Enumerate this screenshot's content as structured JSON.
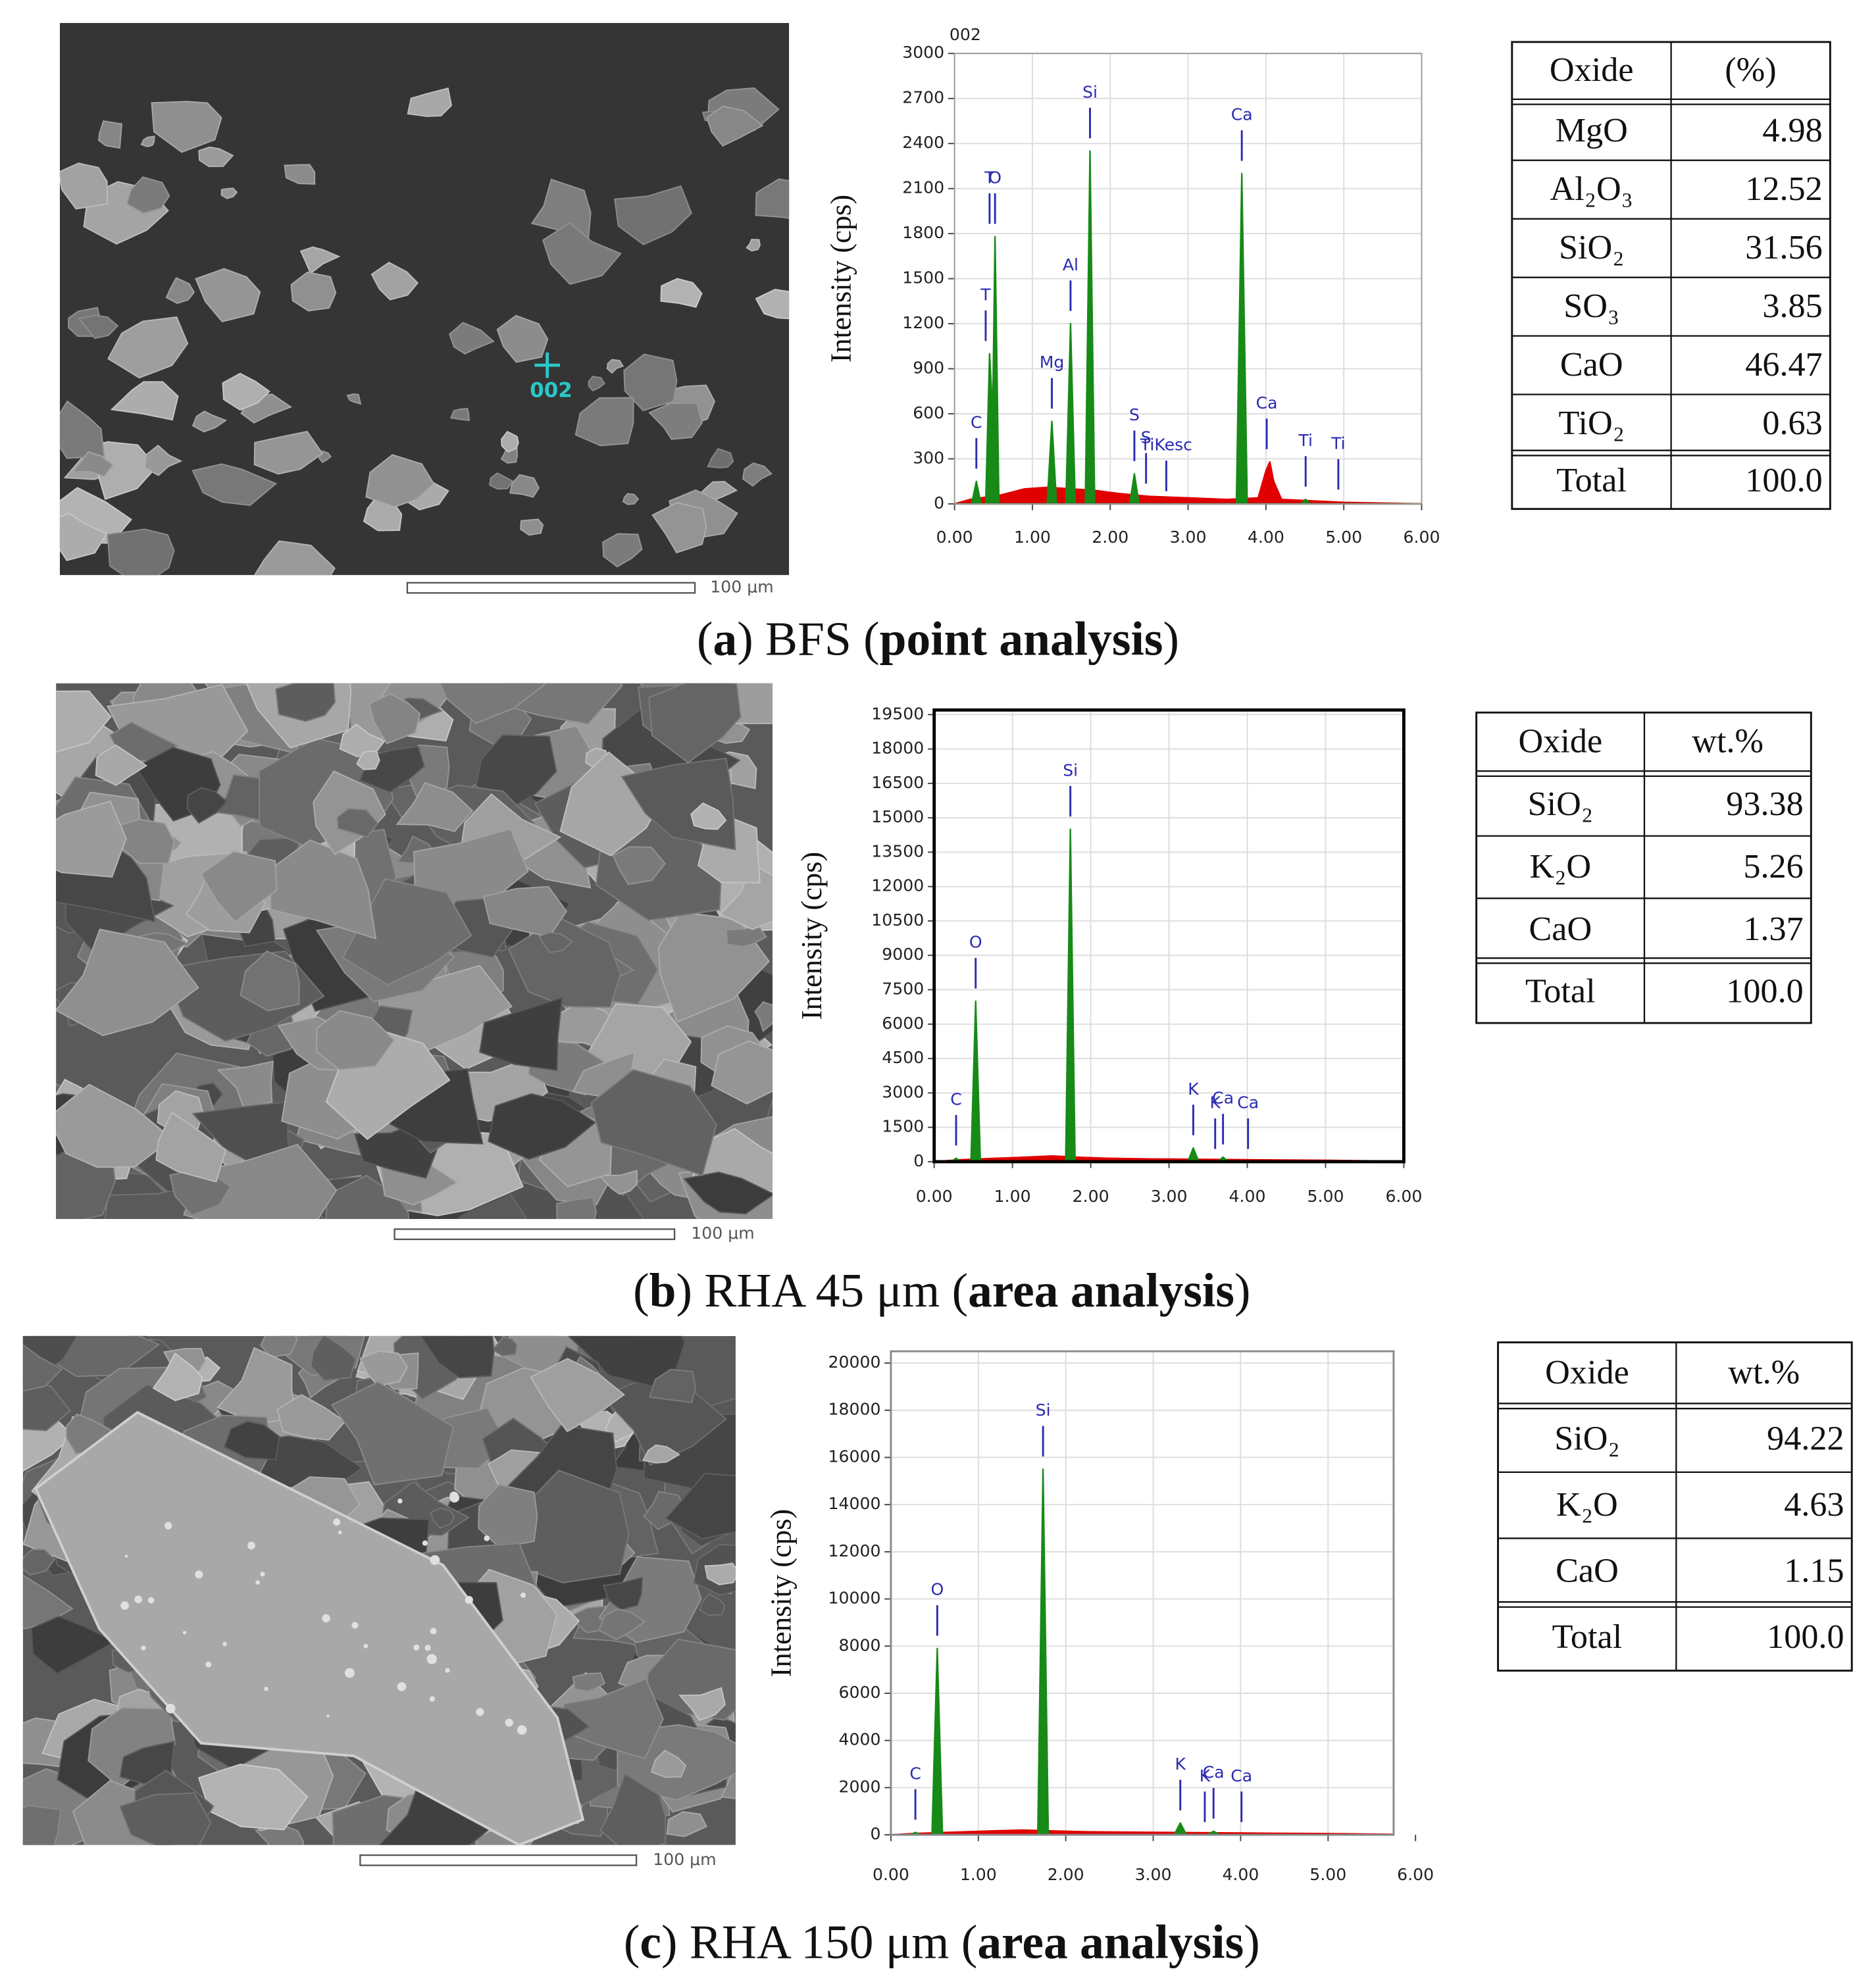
{
  "chart_data": [
    {
      "type": "spectrum",
      "title": "002",
      "y_label": "Intensity (cps)",
      "xlim": [
        0,
        6
      ],
      "xticks": [
        {
          "value": 0,
          "label": "0.00"
        },
        {
          "value": 1,
          "label": "1.00"
        },
        {
          "value": 2,
          "label": "2.00"
        },
        {
          "value": 3,
          "label": "3.00"
        },
        {
          "value": 4,
          "label": "4.00"
        },
        {
          "value": 5,
          "label": "5.00"
        },
        {
          "value": 6,
          "label": "6.00"
        }
      ],
      "ylim": [
        0,
        3000
      ],
      "yticks": [
        0,
        300,
        600,
        900,
        1200,
        1500,
        1800,
        2100,
        2400,
        2700,
        3000
      ],
      "grid": true,
      "series": [
        {
          "color": "#e00000",
          "x": [
            0,
            0.2,
            0.6,
            0.9,
            1.2,
            1.5,
            1.8,
            2.1,
            2.5,
            3.0,
            3.5,
            3.9,
            4.0,
            4.05,
            4.1,
            4.2,
            4.6,
            5.0,
            5.5,
            6
          ],
          "values": [
            0,
            30,
            60,
            100,
            110,
            100,
            90,
            70,
            50,
            40,
            30,
            40,
            220,
            280,
            150,
            30,
            20,
            10,
            5,
            0
          ]
        },
        {
          "color": "#178a17",
          "x": [
            0,
            0.22,
            0.28,
            0.34,
            0.4,
            0.45,
            0.49,
            0.52,
            0.57,
            1.19,
            1.25,
            1.31,
            1.43,
            1.49,
            1.55,
            1.68,
            1.74,
            1.8,
            2.25,
            2.31,
            2.37,
            3.62,
            3.69,
            3.76,
            4.45,
            4.51,
            4.57,
            6
          ],
          "values": [
            0,
            0,
            150,
            0,
            0,
            1000,
            600,
            1780,
            0,
            0,
            550,
            0,
            0,
            1200,
            0,
            0,
            2350,
            0,
            0,
            200,
            0,
            0,
            2200,
            0,
            0,
            30,
            0,
            0
          ]
        }
      ],
      "peaks": [
        {
          "label": "C",
          "x": 0.28
        },
        {
          "label": "T",
          "x": 0.4
        },
        {
          "label": "T",
          "x": 0.45
        },
        {
          "label": "O",
          "x": 0.52
        },
        {
          "label": "Mg",
          "x": 1.25
        },
        {
          "label": "Al",
          "x": 1.49
        },
        {
          "label": "Si",
          "x": 1.74
        },
        {
          "label": "S",
          "x": 2.31
        },
        {
          "label": "S",
          "x": 2.46
        },
        {
          "label": "TiKesc",
          "x": 2.72
        },
        {
          "label": "Ca",
          "x": 3.69
        },
        {
          "label": "Ca",
          "x": 4.01
        },
        {
          "label": "Ti",
          "x": 4.51
        },
        {
          "label": "Ti",
          "x": 4.93
        }
      ]
    },
    {
      "type": "spectrum",
      "y_label": "Intensity (cps)",
      "xlim": [
        0,
        6
      ],
      "xticks": [
        {
          "value": 0,
          "label": "0.00"
        },
        {
          "value": 1,
          "label": "1.00"
        },
        {
          "value": 2,
          "label": "2.00"
        },
        {
          "value": 3,
          "label": "3.00"
        },
        {
          "value": 4,
          "label": "4.00"
        },
        {
          "value": 5,
          "label": "5.00"
        },
        {
          "value": 6,
          "label": "6.00"
        }
      ],
      "ylim": [
        0,
        19700
      ],
      "yticks": [
        0,
        1500,
        3000,
        4500,
        6000,
        7500,
        9000,
        10500,
        12000,
        13500,
        15000,
        16500,
        18000,
        19500
      ],
      "grid": true,
      "series": [
        {
          "color": "#e00000",
          "x": [
            0,
            0.3,
            0.8,
            1.2,
            1.5,
            1.8,
            2.2,
            2.8,
            3.5,
            4.2,
            5.0,
            5.8,
            6
          ],
          "values": [
            0,
            80,
            150,
            200,
            250,
            200,
            150,
            120,
            100,
            80,
            60,
            30,
            0
          ]
        },
        {
          "color": "#178a17",
          "x": [
            0,
            0.22,
            0.28,
            0.34,
            0.47,
            0.53,
            0.59,
            1.68,
            1.74,
            1.8,
            3.24,
            3.31,
            3.38,
            3.62,
            3.69,
            3.76,
            6
          ],
          "values": [
            0,
            0,
            150,
            0,
            0,
            7000,
            0,
            0,
            14500,
            0,
            0,
            600,
            0,
            0,
            200,
            0,
            0
          ]
        }
      ],
      "peaks": [
        {
          "label": "C",
          "x": 0.28
        },
        {
          "label": "O",
          "x": 0.53
        },
        {
          "label": "Si",
          "x": 1.74
        },
        {
          "label": "K",
          "x": 3.31
        },
        {
          "label": "K",
          "x": 3.59
        },
        {
          "label": "Ca",
          "x": 3.69
        },
        {
          "label": "Ca",
          "x": 4.01
        }
      ]
    },
    {
      "type": "spectrum",
      "y_label": "Intensity (cps)",
      "xlim": [
        0,
        5.75
      ],
      "xticks": [
        {
          "value": 0,
          "label": "0.00"
        },
        {
          "value": 1,
          "label": "1.00"
        },
        {
          "value": 2,
          "label": "2.00"
        },
        {
          "value": 3,
          "label": "3.00"
        },
        {
          "value": 4,
          "label": "4.00"
        },
        {
          "value": 5,
          "label": "5.00"
        },
        {
          "value": 6,
          "label": "6.00"
        }
      ],
      "ylim": [
        0,
        20500
      ],
      "yticks": [
        0,
        2000,
        4000,
        6000,
        8000,
        10000,
        12000,
        14000,
        16000,
        18000,
        20000
      ],
      "grid": true,
      "series": [
        {
          "color": "#e00000",
          "x": [
            0,
            0.3,
            0.8,
            1.2,
            1.5,
            1.8,
            2.2,
            2.8,
            3.5,
            4.2,
            5.0,
            5.75
          ],
          "values": [
            0,
            60,
            120,
            170,
            200,
            170,
            130,
            110,
            90,
            70,
            50,
            20
          ]
        },
        {
          "color": "#178a17",
          "x": [
            0,
            0.22,
            0.28,
            0.34,
            0.47,
            0.53,
            0.59,
            1.68,
            1.74,
            1.8,
            3.24,
            3.31,
            3.38,
            3.62,
            3.69,
            3.76,
            5.75
          ],
          "values": [
            0,
            0,
            100,
            0,
            0,
            7900,
            0,
            0,
            15500,
            0,
            0,
            500,
            0,
            0,
            150,
            0,
            0
          ]
        }
      ],
      "peaks": [
        {
          "label": "C",
          "x": 0.28
        },
        {
          "label": "O",
          "x": 0.53
        },
        {
          "label": "Si",
          "x": 1.74
        },
        {
          "label": "K",
          "x": 3.31
        },
        {
          "label": "K",
          "x": 3.59
        },
        {
          "label": "Ca",
          "x": 3.69
        },
        {
          "label": "Ca",
          "x": 4.01
        }
      ]
    }
  ],
  "panels": [
    {
      "sem": {
        "scale_label": "100 μm",
        "point_label": "002"
      },
      "table": {
        "header": [
          "Oxide",
          "(%)"
        ],
        "rows": [
          [
            "MgO",
            "4.98"
          ],
          [
            "Al₂O₃",
            "12.52"
          ],
          [
            "SiO₂",
            "31.56"
          ],
          [
            "SO₃",
            "3.85"
          ],
          [
            "CaO",
            "46.47"
          ],
          [
            "TiO₂",
            "0.63"
          ]
        ],
        "total": [
          "Total",
          "100.0"
        ]
      },
      "caption": [
        {
          "text": "(",
          "bold": false
        },
        {
          "text": "a",
          "bold": true
        },
        {
          "text": ") BFS (",
          "bold": false
        },
        {
          "text": "point analysis",
          "bold": true
        },
        {
          "text": ")",
          "bold": false
        }
      ]
    },
    {
      "sem": {
        "scale_label": "100 μm"
      },
      "table": {
        "header": [
          "Oxide",
          "wt.%"
        ],
        "rows": [
          [
            "SiO₂",
            "93.38"
          ],
          [
            "K₂O",
            "5.26"
          ],
          [
            "CaO",
            "1.37"
          ]
        ],
        "total": [
          "Total",
          "100.0"
        ]
      },
      "caption": [
        {
          "text": "(",
          "bold": false
        },
        {
          "text": "b",
          "bold": true
        },
        {
          "text": ") RHA 45 μm (",
          "bold": false
        },
        {
          "text": "area analysis",
          "bold": true
        },
        {
          "text": ")",
          "bold": false
        }
      ]
    },
    {
      "sem": {
        "scale_label": "100 μm"
      },
      "table": {
        "header": [
          "Oxide",
          "wt.%"
        ],
        "rows": [
          [
            "SiO₂",
            "94.22"
          ],
          [
            "K₂O",
            "4.63"
          ],
          [
            "CaO",
            "1.15"
          ]
        ],
        "total": [
          "Total",
          "100.0"
        ]
      },
      "caption": [
        {
          "text": "(",
          "bold": false
        },
        {
          "text": "c",
          "bold": true
        },
        {
          "text": ") RHA 150 μm (",
          "bold": false
        },
        {
          "text": "area analysis",
          "bold": true
        },
        {
          "text": ")",
          "bold": false
        }
      ]
    }
  ]
}
